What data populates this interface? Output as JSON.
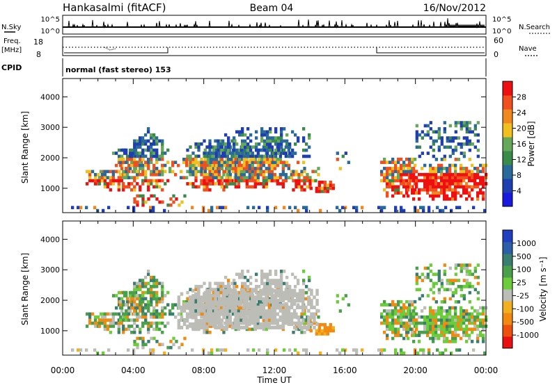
{
  "header": {
    "station": "Hankasalmi (fitACF)",
    "beam": "Beam 04",
    "date": "16/Nov/2012"
  },
  "status_panels": {
    "nsky_label": "N.Sky",
    "nsearch_label": "N.Search",
    "noise_ticks": [
      "10^5",
      "10^0"
    ],
    "freq_label": "Freq.",
    "freq_unit": "[MHz]",
    "freq_ticks": [
      "18",
      "8"
    ],
    "nave_label": "Nave",
    "nave_ticks": [
      "60",
      "0"
    ],
    "cpid_label": "CPID",
    "cpid_text": "normal (fast stereo) 153"
  },
  "colors": {
    "power_scale": [
      "#1a1adf",
      "#1f3fb0",
      "#2a6a9a",
      "#3a8a4a",
      "#66a85a",
      "#f0c020",
      "#f08820",
      "#f05020",
      "#ee1010"
    ],
    "velocity_scale": [
      "#2040c0",
      "#2c5fa8",
      "#3a7e70",
      "#4aa04a",
      "#6ccc3a",
      "#bdbdb7",
      "#f0b020",
      "#f08a10",
      "#ee5010",
      "#e81010"
    ],
    "scatter_gray": "#bdbdb7"
  },
  "chart_data": [
    {
      "type": "heatmap",
      "name": "power",
      "ylabel": "Slant Range [km]",
      "xlabel": "Time UT",
      "ylim": [
        200,
        4600
      ],
      "yticks": [
        "1000",
        "2000",
        "3000",
        "4000"
      ],
      "xticks": [
        "00:00",
        "04:00",
        "08:00",
        "12:00",
        "16:00",
        "20:00",
        "00:00"
      ],
      "colorbar_label": "Power [dB]",
      "colorbar_ticks": [
        "4",
        "8",
        "12",
        "16",
        "20",
        "24",
        "28"
      ]
    },
    {
      "type": "heatmap",
      "name": "velocity",
      "ylabel": "Slant Range [km]",
      "xlabel": "Time UT",
      "ylim": [
        200,
        4600
      ],
      "yticks": [
        "1000",
        "2000",
        "3000",
        "4000"
      ],
      "xticks": [
        "00:00",
        "04:00",
        "08:00",
        "12:00",
        "16:00",
        "20:00",
        "00:00"
      ],
      "colorbar_label": "Velocity [m s⁻¹]",
      "colorbar_ticks": [
        "1000",
        "500",
        "100",
        "25",
        "-25",
        "-100",
        "-500",
        "-1000"
      ]
    }
  ]
}
